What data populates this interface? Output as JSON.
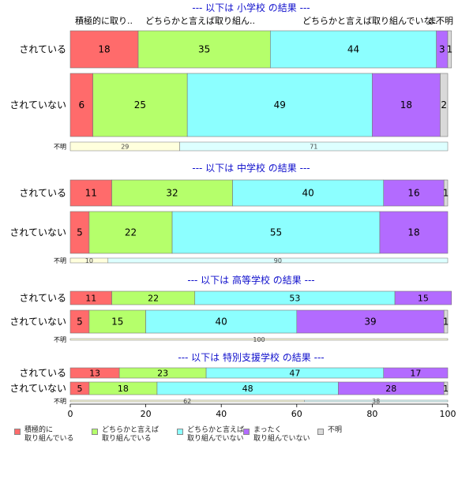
{
  "chart_data": {
    "type": "bar",
    "orientation": "horizontal-stacked-percent",
    "xlim": [
      0,
      100
    ],
    "xticks": [
      0,
      20,
      40,
      60,
      80,
      100
    ],
    "category_legend": [
      {
        "name": "積極的に\n取り組んでいる",
        "color": "#FF6B6B"
      },
      {
        "name": "どちらかと言えば\n取り組んでいる",
        "color": "#B5FF6B"
      },
      {
        "name": "どちらかと言えば\n取り組んでいない",
        "color": "#8CFFFF"
      },
      {
        "name": "まったく\n取り組んでいない",
        "color": "#B36BFF"
      },
      {
        "name": "不明",
        "color": "#D9D9D9"
      }
    ],
    "header_labels": [
      "積極的に取り..",
      "どちらかと言えば取り組ん..",
      "どちらかと言えば取り組んでいな..",
      "ま",
      "不明"
    ],
    "panels": [
      {
        "title": "--- 以下は 小学校 の結果 ---",
        "rows": [
          {
            "label": "されている",
            "values": [
              18,
              35,
              44,
              3,
              1
            ]
          },
          {
            "label": "されていない",
            "values": [
              6,
              25,
              49,
              18,
              2
            ]
          }
        ],
        "unknown": {
          "label": "不明",
          "values": [
            29,
            71
          ]
        }
      },
      {
        "title": "--- 以下は 中学校 の結果 ---",
        "rows": [
          {
            "label": "されている",
            "values": [
              11,
              32,
              40,
              16,
              1
            ]
          },
          {
            "label": "されていない",
            "values": [
              5,
              22,
              55,
              18,
              0
            ]
          }
        ],
        "unknown": {
          "label": "不明",
          "values": [
            10,
            90
          ]
        }
      },
      {
        "title": "--- 以下は 高等学校 の結果 ---",
        "rows": [
          {
            "label": "されている",
            "values": [
              11,
              22,
              53,
              15,
              0
            ]
          },
          {
            "label": "されていない",
            "values": [
              5,
              15,
              40,
              39,
              1
            ]
          }
        ],
        "unknown": {
          "label": "不明",
          "values": [
            100
          ]
        }
      },
      {
        "title": "--- 以下は 特別支援学校 の結果 ---",
        "rows": [
          {
            "label": "されている",
            "values": [
              13,
              23,
              47,
              17,
              0
            ]
          },
          {
            "label": "されていない",
            "values": [
              5,
              18,
              48,
              28,
              1
            ]
          }
        ],
        "unknown": {
          "label": "不明",
          "values": [
            62,
            38
          ]
        }
      }
    ]
  },
  "colors": {
    "title": "#1010CC",
    "unknown_bar_1": "#FFFFDD",
    "unknown_bar_2": "#DDFFFF",
    "bar_border": "#777777"
  }
}
